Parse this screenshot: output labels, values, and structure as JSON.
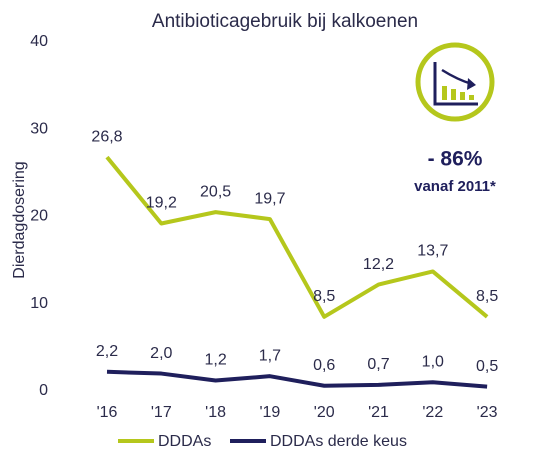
{
  "chart_data": {
    "type": "line",
    "title": "Antibioticagebruik bij kalkoenen",
    "y_label": "Dierdagdosering",
    "categories": [
      "'16",
      "'17",
      "'18",
      "'19",
      "'20",
      "'21",
      "'22",
      "'23"
    ],
    "series": [
      {
        "name": "DDDAs",
        "color": "#b5c71c",
        "values": [
          26.8,
          19.2,
          20.5,
          19.7,
          8.5,
          12.2,
          13.7,
          8.5
        ],
        "value_labels": [
          "26,8",
          "19,2",
          "20,5",
          "19,7",
          "8,5",
          "12,2",
          "13,7",
          "8,5"
        ]
      },
      {
        "name": "DDDAs derde keus",
        "color": "#1f1f5c",
        "values": [
          2.2,
          2.0,
          1.2,
          1.7,
          0.6,
          0.7,
          1.0,
          0.5
        ],
        "value_labels": [
          "2,2",
          "2,0",
          "1,2",
          "1,7",
          "0,6",
          "0,7",
          "1,0",
          "0,5"
        ]
      }
    ],
    "ylim": [
      0,
      40
    ],
    "yticks": [
      0,
      10,
      20,
      30,
      40
    ],
    "grid": false,
    "legend": "bottom",
    "annotations": [
      "- 86%",
      "vanaf 2011*"
    ]
  }
}
